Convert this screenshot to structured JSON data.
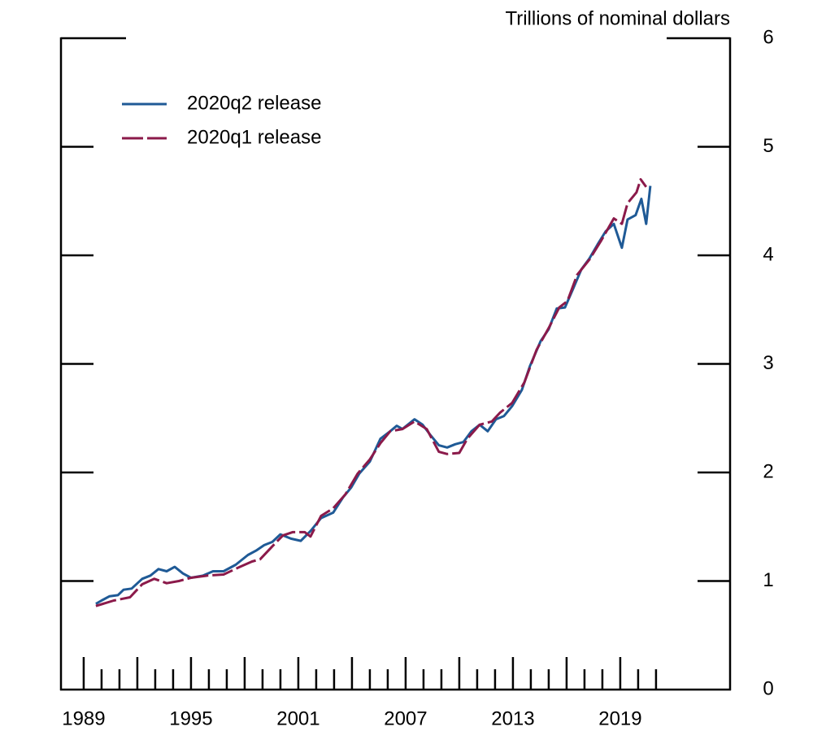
{
  "chart_data": {
    "type": "line",
    "y_axis_label": "Trillions of nominal dollars",
    "xlim": [
      1987.73,
      2025.14
    ],
    "xticks": [
      1989,
      1995,
      2001,
      2007,
      2013,
      2019
    ],
    "x_minor_ticks": [
      1990,
      1991,
      1992,
      1993,
      1994,
      1996,
      1997,
      1998,
      1999,
      2000,
      2002,
      2003,
      2004,
      2005,
      2006,
      2008,
      2009,
      2010,
      2011,
      2012,
      2014,
      2015,
      2016,
      2017,
      2018,
      2020,
      2021
    ],
    "ylim": [
      0,
      6
    ],
    "yticks": [
      0,
      1,
      2,
      3,
      4,
      5,
      6
    ],
    "legend": "upper left",
    "series": [
      {
        "name": "2020q2 release",
        "color": "#1f5a96",
        "dash": false,
        "x": [
          1989.68,
          1990.0,
          1990.45,
          1990.91,
          1991.23,
          1991.68,
          1992.27,
          1992.73,
          1993.18,
          1993.64,
          1994.09,
          1994.55,
          1995.0,
          1995.68,
          1996.23,
          1996.82,
          1997.5,
          1998.18,
          1998.64,
          1999.09,
          1999.55,
          2000.0,
          2000.59,
          2001.14,
          2001.68,
          2002.27,
          2002.95,
          2003.5,
          2003.95,
          2004.41,
          2005.0,
          2005.59,
          2006.14,
          2006.5,
          2006.82,
          2007.5,
          2007.95,
          2008.41,
          2008.86,
          2009.32,
          2009.77,
          2010.23,
          2010.68,
          2011.14,
          2011.59,
          2012.05,
          2012.5,
          2012.95,
          2013.5,
          2013.95,
          2014.55,
          2015.0,
          2015.45,
          2015.91,
          2016.36,
          2016.82,
          2017.27,
          2017.73,
          2018.18,
          2018.64,
          2019.09,
          2019.41,
          2019.86,
          2020.18,
          2020.45,
          2020.68
        ],
        "values": [
          0.79,
          0.82,
          0.86,
          0.87,
          0.92,
          0.93,
          1.02,
          1.05,
          1.11,
          1.09,
          1.13,
          1.07,
          1.03,
          1.05,
          1.09,
          1.09,
          1.15,
          1.24,
          1.28,
          1.33,
          1.36,
          1.43,
          1.39,
          1.37,
          1.46,
          1.58,
          1.63,
          1.77,
          1.86,
          1.99,
          2.1,
          2.31,
          2.38,
          2.43,
          2.4,
          2.49,
          2.44,
          2.34,
          2.25,
          2.23,
          2.26,
          2.28,
          2.38,
          2.44,
          2.38,
          2.49,
          2.52,
          2.61,
          2.76,
          2.98,
          3.21,
          3.32,
          3.51,
          3.52,
          3.69,
          3.87,
          3.97,
          4.1,
          4.22,
          4.29,
          4.07,
          4.33,
          4.37,
          4.52,
          4.29,
          4.64
        ]
      },
      {
        "name": "2020q1 release",
        "color": "#8b1a4a",
        "dash": true,
        "x": [
          1989.68,
          1990.68,
          1991.59,
          1992.27,
          1992.95,
          1993.64,
          1994.32,
          1995.0,
          1995.91,
          1996.82,
          1997.73,
          1998.41,
          1998.86,
          1999.55,
          2000.14,
          2000.68,
          2001.36,
          2001.68,
          2002.27,
          2002.95,
          2003.64,
          2004.32,
          2005.0,
          2005.59,
          2006.14,
          2006.82,
          2007.5,
          2008.18,
          2008.86,
          2009.32,
          2010.0,
          2010.45,
          2011.14,
          2011.82,
          2012.27,
          2012.95,
          2013.64,
          2014.32,
          2015.0,
          2015.59,
          2016.05,
          2016.59,
          2017.27,
          2017.95,
          2018.64,
          2019.09,
          2019.41,
          2019.91,
          2020.14,
          2020.45
        ],
        "values": [
          0.77,
          0.82,
          0.85,
          0.97,
          1.02,
          0.98,
          1.0,
          1.03,
          1.05,
          1.06,
          1.13,
          1.18,
          1.2,
          1.32,
          1.42,
          1.45,
          1.45,
          1.41,
          1.6,
          1.67,
          1.8,
          1.99,
          2.12,
          2.27,
          2.38,
          2.4,
          2.47,
          2.4,
          2.19,
          2.17,
          2.18,
          2.31,
          2.44,
          2.47,
          2.55,
          2.64,
          2.83,
          3.13,
          3.33,
          3.52,
          3.58,
          3.82,
          3.96,
          4.14,
          4.34,
          4.29,
          4.48,
          4.58,
          4.7,
          4.63
        ]
      }
    ]
  }
}
